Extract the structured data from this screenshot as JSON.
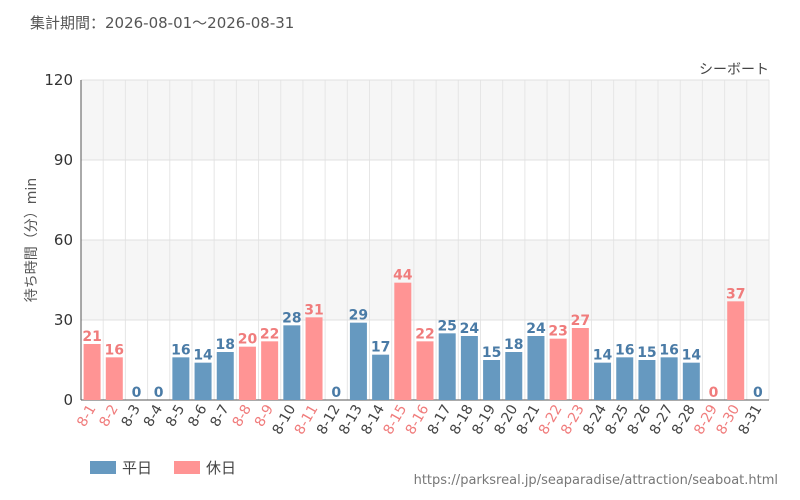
{
  "header": {
    "period_label": "集計期間：2026-08-01～2026-08-31"
  },
  "legend": [
    {
      "label": "平日",
      "color": "#6699c0"
    },
    {
      "label": "休日",
      "color": "#ff9494"
    }
  ],
  "source": {
    "text": "https://parksreal.jp/seaparadise/attraction/seaboat.html"
  },
  "colors": {
    "weekday": "#6699c0",
    "holiday": "#ff9494",
    "weekday_label": "#4a7ba6",
    "holiday_label": "#f07c7c"
  },
  "chart_data": {
    "type": "bar",
    "series_name": "シーボート",
    "ylabel": "待ち時間（分）min",
    "ylim": [
      0,
      120
    ],
    "yticks": [
      0,
      30,
      60,
      90,
      120
    ],
    "grid": true,
    "categories": [
      "8-1",
      "8-2",
      "8-3",
      "8-4",
      "8-5",
      "8-6",
      "8-7",
      "8-8",
      "8-9",
      "8-10",
      "8-11",
      "8-12",
      "8-13",
      "8-14",
      "8-15",
      "8-16",
      "8-17",
      "8-18",
      "8-19",
      "8-20",
      "8-21",
      "8-22",
      "8-23",
      "8-24",
      "8-25",
      "8-26",
      "8-27",
      "8-28",
      "8-29",
      "8-30",
      "8-31"
    ],
    "values": [
      21,
      16,
      0,
      0,
      16,
      14,
      18,
      20,
      22,
      28,
      31,
      0,
      29,
      17,
      44,
      22,
      25,
      24,
      15,
      18,
      24,
      23,
      27,
      14,
      16,
      15,
      16,
      14,
      0,
      37,
      0
    ],
    "day_type": [
      "holiday",
      "holiday",
      "weekday",
      "weekday",
      "weekday",
      "weekday",
      "weekday",
      "holiday",
      "holiday",
      "weekday",
      "holiday",
      "weekday",
      "weekday",
      "weekday",
      "holiday",
      "holiday",
      "weekday",
      "weekday",
      "weekday",
      "weekday",
      "weekday",
      "holiday",
      "holiday",
      "weekday",
      "weekday",
      "weekday",
      "weekday",
      "weekday",
      "holiday",
      "holiday",
      "weekday"
    ]
  }
}
